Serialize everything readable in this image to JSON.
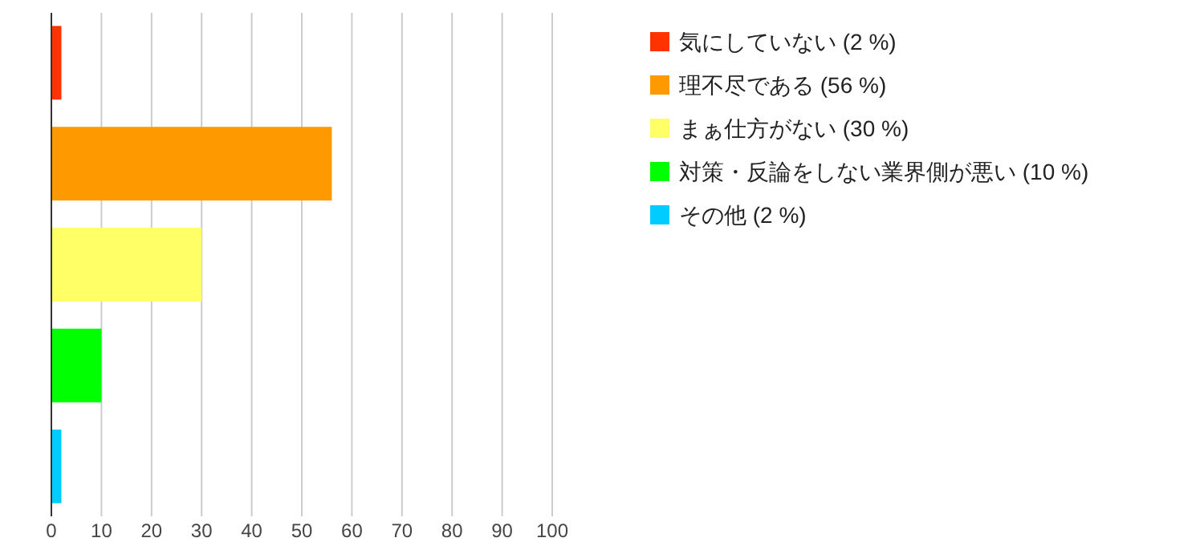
{
  "chart_data": {
    "type": "bar",
    "orientation": "horizontal",
    "categories": [
      null,
      null,
      null,
      null,
      null
    ],
    "series": [
      {
        "name": "気にしていない (2 %)",
        "color": "#ff3300",
        "values": [
          2,
          null,
          null,
          null,
          null
        ]
      },
      {
        "name": "理不尽である (56 %)",
        "color": "#ff9900",
        "values": [
          null,
          56,
          null,
          null,
          null
        ]
      },
      {
        "name": "まぁ仕方がない (30 %)",
        "color": "#ffff66",
        "values": [
          null,
          null,
          30,
          null,
          null
        ]
      },
      {
        "name": "対策・反論をしない業界側が悪い (10 %)",
        "color": "#00ff00",
        "values": [
          null,
          null,
          null,
          10,
          null
        ]
      },
      {
        "name": "その他 (2 %)",
        "color": "#00ccff",
        "values": [
          null,
          null,
          null,
          null,
          2
        ]
      }
    ],
    "xlim": [
      0,
      100
    ],
    "xticks": [
      0,
      10,
      20,
      30,
      40,
      50,
      60,
      70,
      80,
      90,
      100
    ],
    "grid": "x",
    "legend": "right",
    "tick_labels": "x"
  }
}
